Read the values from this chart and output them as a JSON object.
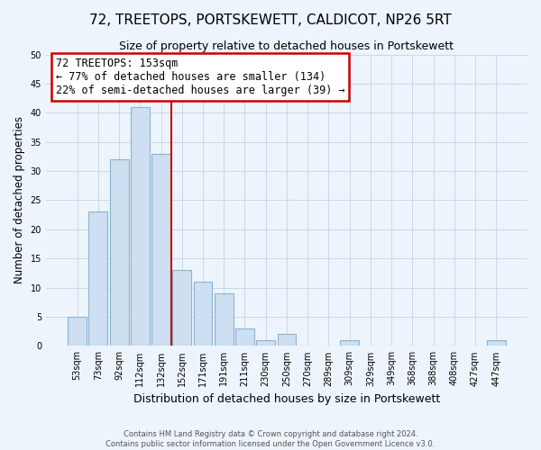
{
  "title": "72, TREETOPS, PORTSKEWETT, CALDICOT, NP26 5RT",
  "subtitle": "Size of property relative to detached houses in Portskewett",
  "xlabel": "Distribution of detached houses by size in Portskewett",
  "ylabel": "Number of detached properties",
  "bar_labels": [
    "53sqm",
    "73sqm",
    "92sqm",
    "112sqm",
    "132sqm",
    "152sqm",
    "171sqm",
    "191sqm",
    "211sqm",
    "230sqm",
    "250sqm",
    "270sqm",
    "289sqm",
    "309sqm",
    "329sqm",
    "349sqm",
    "368sqm",
    "388sqm",
    "408sqm",
    "427sqm",
    "447sqm"
  ],
  "bar_values": [
    5,
    23,
    32,
    41,
    33,
    13,
    11,
    9,
    3,
    1,
    2,
    0,
    0,
    1,
    0,
    0,
    0,
    0,
    0,
    0,
    1
  ],
  "bar_color": "#cddff0",
  "bar_edge_color": "#8ab4d4",
  "vline_x": 4.5,
  "vline_color": "#cc0000",
  "annotation_line1": "72 TREETOPS: 153sqm",
  "annotation_line2": "← 77% of detached houses are smaller (134)",
  "annotation_line3": "22% of semi-detached houses are larger (39) →",
  "annotation_box_color": "white",
  "annotation_box_edge": "#cc0000",
  "ylim": [
    0,
    50
  ],
  "yticks": [
    0,
    5,
    10,
    15,
    20,
    25,
    30,
    35,
    40,
    45,
    50
  ],
  "footer1": "Contains HM Land Registry data © Crown copyright and database right 2024.",
  "footer2": "Contains public sector information licensed under the Open Government Licence v3.0.",
  "grid_color": "#c8d8e8",
  "bg_color": "#edf4fb"
}
